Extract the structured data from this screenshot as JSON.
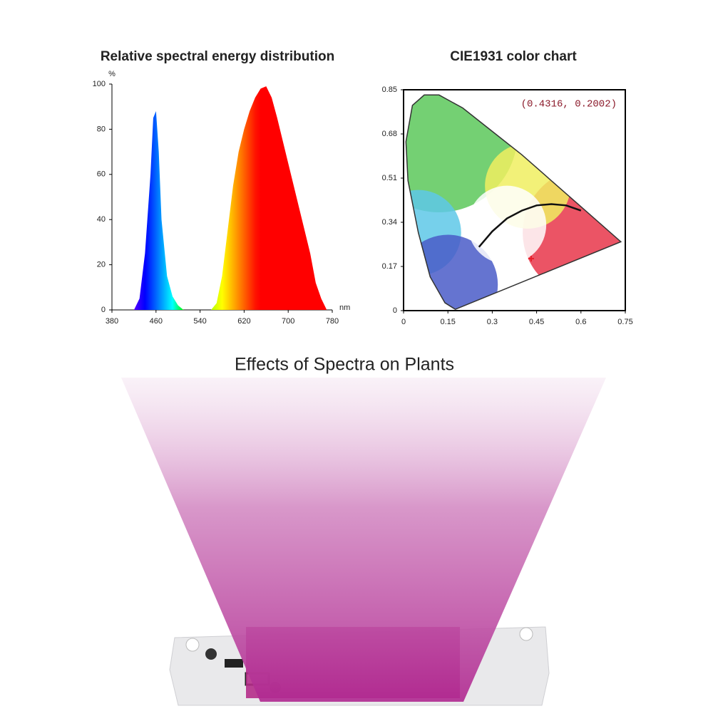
{
  "heading": "Effects of Spectra on Plants",
  "chart_data": [
    {
      "type": "area",
      "title": "Relative spectral energy distribution",
      "x_label": "nm",
      "y_label": "%",
      "x": [
        420,
        430,
        440,
        450,
        455,
        460,
        465,
        470,
        480,
        490,
        500,
        510,
        520,
        540,
        560,
        570,
        580,
        590,
        600,
        610,
        620,
        630,
        640,
        650,
        660,
        670,
        680,
        690,
        700,
        710,
        720,
        730,
        740,
        750,
        760,
        770
      ],
      "series": [
        {
          "values": [
            0,
            5,
            25,
            60,
            85,
            88,
            70,
            40,
            15,
            6,
            2,
            0,
            0,
            0,
            0,
            3,
            15,
            35,
            55,
            70,
            80,
            88,
            94,
            98,
            99,
            94,
            85,
            75,
            65,
            55,
            45,
            35,
            25,
            12,
            5,
            0
          ]
        }
      ],
      "xlim": [
        380,
        780
      ],
      "xticks": [
        380,
        460,
        540,
        620,
        700,
        780
      ],
      "ylim": [
        0,
        100
      ],
      "yticks": [
        0,
        20,
        40,
        60,
        80,
        100
      ],
      "frame": false
    },
    {
      "type": "scatter",
      "title": "CIE1931 color chart",
      "annotation": "(0.4316, 0.2002)",
      "xlim": [
        0,
        0.75
      ],
      "xticks": [
        0,
        0.15,
        0.3,
        0.45,
        0.6,
        0.75
      ],
      "ylim": [
        0,
        0.85
      ],
      "yticks": [
        0,
        0.17,
        0.34,
        0.51,
        0.68,
        0.85
      ],
      "frame": true,
      "series": [
        {
          "kind": "boundary",
          "color": "#333333",
          "x": [
            0.175,
            0.14,
            0.09,
            0.05,
            0.015,
            0.008,
            0.03,
            0.07,
            0.12,
            0.2,
            0.3,
            0.4,
            0.5,
            0.6,
            0.735,
            0.175
          ],
          "values": [
            0.005,
            0.03,
            0.13,
            0.3,
            0.5,
            0.65,
            0.79,
            0.83,
            0.83,
            0.78,
            0.69,
            0.6,
            0.5,
            0.4,
            0.265,
            0.005
          ]
        },
        {
          "kind": "line",
          "color": "#111111",
          "x": [
            0.255,
            0.3,
            0.35,
            0.4,
            0.45,
            0.5,
            0.55,
            0.6
          ],
          "values": [
            0.245,
            0.305,
            0.355,
            0.385,
            0.405,
            0.41,
            0.405,
            0.385
          ]
        },
        {
          "kind": "point",
          "color": "#e8202a",
          "x": [
            0.4316
          ],
          "values": [
            0.2002
          ]
        }
      ]
    }
  ]
}
